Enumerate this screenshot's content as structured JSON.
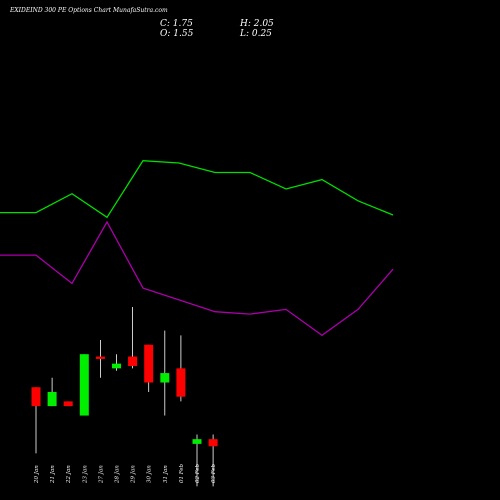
{
  "chart_data": {
    "type": "candlestick",
    "title": "EXIDEIND 300  PE Options  Chart MunafaSutra.com",
    "summary": {
      "close": "C: 1.75",
      "open": "O: 1.55",
      "high": "H: 2.05",
      "low": "L: 0.25"
    },
    "dates": [
      "20 Jan",
      "21 Jan",
      "22 Jan",
      "23 Jan",
      "27 Jan",
      "28 Jan",
      "29 Jan",
      "30 Jan",
      "31 Jan",
      "01 Feb",
      "02 Feb",
      "03 Feb"
    ],
    "candles": [
      {
        "open": 3.3,
        "high": 3.3,
        "low": 1.9,
        "close": 2.9
      },
      {
        "open": 2.9,
        "high": 3.5,
        "low": 2.9,
        "close": 3.2
      },
      {
        "open": 3.0,
        "high": 3.0,
        "low": 2.9,
        "close": 2.9
      },
      {
        "open": 2.7,
        "high": 4.0,
        "low": 2.7,
        "close": 4.0
      },
      {
        "open": 3.95,
        "high": 4.3,
        "low": 3.5,
        "close": 3.9
      },
      {
        "open": 3.7,
        "high": 4.0,
        "low": 3.65,
        "close": 3.8
      },
      {
        "open": 3.95,
        "high": 5.0,
        "low": 3.7,
        "close": 3.75
      },
      {
        "open": 4.2,
        "high": 4.2,
        "low": 3.2,
        "close": 3.4
      },
      {
        "open": 3.4,
        "high": 4.5,
        "low": 2.7,
        "close": 3.6
      },
      {
        "open": 3.7,
        "high": 4.4,
        "low": 3.0,
        "close": 3.1
      },
      {
        "open": 2.1,
        "high": 2.3,
        "low": 1.2,
        "close": 2.2
      },
      {
        "open": 2.2,
        "high": 2.3,
        "low": 1.2,
        "close": 2.05
      }
    ],
    "band_upper": [
      7.0,
      7.0,
      7.4,
      6.9,
      8.1,
      8.05,
      7.85,
      7.85,
      7.5,
      7.7,
      7.25,
      6.95
    ],
    "band_lower": [
      6.1,
      6.1,
      5.5,
      6.8,
      5.4,
      5.15,
      4.9,
      4.85,
      4.95,
      4.4,
      4.95,
      5.8
    ],
    "colors": {
      "background": "#000000",
      "up": "#00ee00",
      "down": "#ff0000",
      "upper_band": "#00dd00",
      "lower_band": "#aa00aa",
      "text": "#ffffff"
    }
  }
}
